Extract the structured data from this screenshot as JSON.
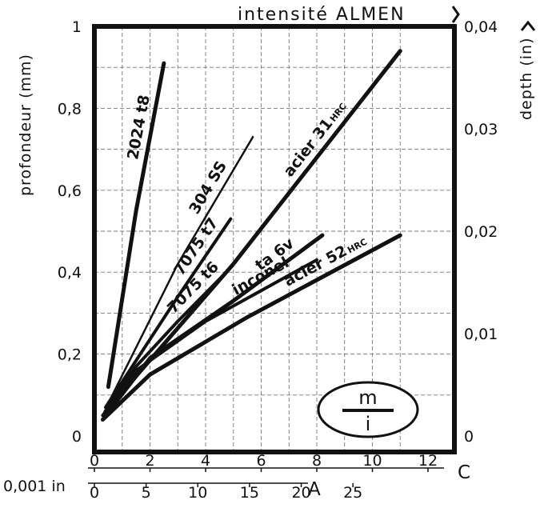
{
  "chart_data": {
    "type": "line",
    "title": "intensité ALMEN",
    "ylabel": "profondeur (mm)",
    "ylabel_right": "depth (in)",
    "xlabel_bottom": "0,001 in",
    "x_scale_C_letter": "C",
    "x_scale_A_letter": "A",
    "xlim_C": [
      0,
      12
    ],
    "ylim": [
      0,
      1
    ],
    "ylim_right": [
      0,
      0.04
    ],
    "x_ticks_C": [
      {
        "v": 0,
        "label": "0"
      },
      {
        "v": 2,
        "label": "2"
      },
      {
        "v": 4,
        "label": "4"
      },
      {
        "v": 6,
        "label": "6"
      },
      {
        "v": 8,
        "label": "8"
      },
      {
        "v": 10,
        "label": "10"
      },
      {
        "v": 12,
        "label": "12"
      }
    ],
    "x_ticks_A": [
      {
        "v": 0,
        "label": "0"
      },
      {
        "v": 5,
        "label": "5"
      },
      {
        "v": 10,
        "label": "10"
      },
      {
        "v": 15,
        "label": "15"
      },
      {
        "v": 20,
        "label": "20"
      },
      {
        "v": 25,
        "label": "25"
      }
    ],
    "y_ticks_left": [
      {
        "v": 0,
        "label": "0"
      },
      {
        "v": 0.2,
        "label": "0,2"
      },
      {
        "v": 0.4,
        "label": "0,4"
      },
      {
        "v": 0.6,
        "label": "0,6"
      },
      {
        "v": 0.8,
        "label": "0,8"
      },
      {
        "v": 1,
        "label": "1"
      }
    ],
    "y_ticks_right": [
      {
        "v": 0,
        "label": "0"
      },
      {
        "v": 0.01,
        "label": "0,01"
      },
      {
        "v": 0.02,
        "label": "0,02"
      },
      {
        "v": 0.03,
        "label": "0,03"
      },
      {
        "v": 0.04,
        "label": "0,04"
      }
    ],
    "grid": true,
    "series": [
      {
        "name": "2024 t8",
        "sub": "",
        "x": [
          0.5,
          1.5,
          2.5
        ],
        "y": [
          0.12,
          0.55,
          0.91
        ]
      },
      {
        "name": "304 SS",
        "sub": "",
        "x": [
          0.5,
          3.0,
          5.7
        ],
        "y": [
          0.08,
          0.42,
          0.73
        ]
      },
      {
        "name": "7075 t7",
        "sub": "",
        "x": [
          0.4,
          3.0,
          4.9
        ],
        "y": [
          0.07,
          0.34,
          0.53
        ]
      },
      {
        "name": "acier 31",
        "sub": "HRC",
        "x": [
          0.4,
          5.0,
          11.0
        ],
        "y": [
          0.06,
          0.42,
          0.94
        ]
      },
      {
        "name": "7075 t6",
        "sub": "",
        "x": [
          0.3,
          1.5,
          3.0,
          4.6
        ],
        "y": [
          0.05,
          0.17,
          0.28,
          0.39
        ]
      },
      {
        "name": "ta 6v",
        "sub": "",
        "x": [
          0.4,
          2.0,
          5.0,
          8.2
        ],
        "y": [
          0.05,
          0.19,
          0.33,
          0.49
        ]
      },
      {
        "name": "inconel",
        "sub": "",
        "x": [
          0.3,
          1.5,
          4.0,
          8.0
        ],
        "y": [
          0.05,
          0.16,
          0.28,
          0.43
        ]
      },
      {
        "name": "acier 52",
        "sub": "HRC",
        "x": [
          0.3,
          2.0,
          5.5,
          11.0
        ],
        "y": [
          0.04,
          0.15,
          0.29,
          0.49
        ]
      }
    ]
  },
  "legend_box": {
    "top": "m",
    "bottom": "i"
  }
}
